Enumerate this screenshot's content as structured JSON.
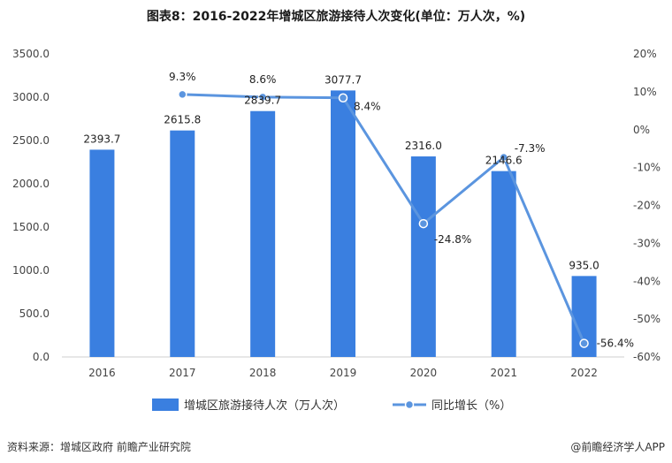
{
  "title": "图表8：2016-2022年增城区旅游接待人次变化(单位：万人次，%)",
  "source": "资料来源：增城区政府 前瞻产业研究院",
  "brand": "@前瞻经济学人APP",
  "chart_data": {
    "type": "bar",
    "categories": [
      "2016",
      "2017",
      "2018",
      "2019",
      "2020",
      "2021",
      "2022"
    ],
    "series": [
      {
        "name": "增城区旅游接待人次（万人次）",
        "type": "bar",
        "axis": "left",
        "color": "#3a7fe0",
        "values": [
          2393.7,
          2615.8,
          2839.7,
          3077.7,
          2316.0,
          2146.6,
          935.0
        ],
        "labels": [
          "2393.7",
          "2615.8",
          "2839.7",
          "3077.7",
          "2316.0",
          "2146.6",
          "935.0"
        ]
      },
      {
        "name": "同比增长（%）",
        "type": "line",
        "axis": "right",
        "color": "#5b95df",
        "values": [
          null,
          9.3,
          8.6,
          8.4,
          -24.8,
          -7.3,
          -56.4
        ],
        "labels": [
          "",
          "9.3%",
          "8.6%",
          "8.4%",
          "-24.8%",
          "-7.3%",
          "-56.4%"
        ]
      }
    ],
    "y_left": {
      "min": 0,
      "max": 3500,
      "ticks": [
        0,
        500,
        1000,
        1500,
        2000,
        2500,
        3000,
        3500
      ],
      "tick_labels": [
        "0.0",
        "500.0",
        "1000.0",
        "1500.0",
        "2000.0",
        "2500.0",
        "3000.0",
        "3500.0"
      ]
    },
    "y_right": {
      "min": -60,
      "max": 20,
      "ticks": [
        -60,
        -50,
        -40,
        -30,
        -20,
        -10,
        0,
        10,
        20
      ],
      "tick_labels": [
        "-60%",
        "-50%",
        "-40%",
        "-30%",
        "-20%",
        "-10%",
        "0%",
        "10%",
        "20%"
      ]
    },
    "legend_position": "bottom",
    "grid": false
  }
}
